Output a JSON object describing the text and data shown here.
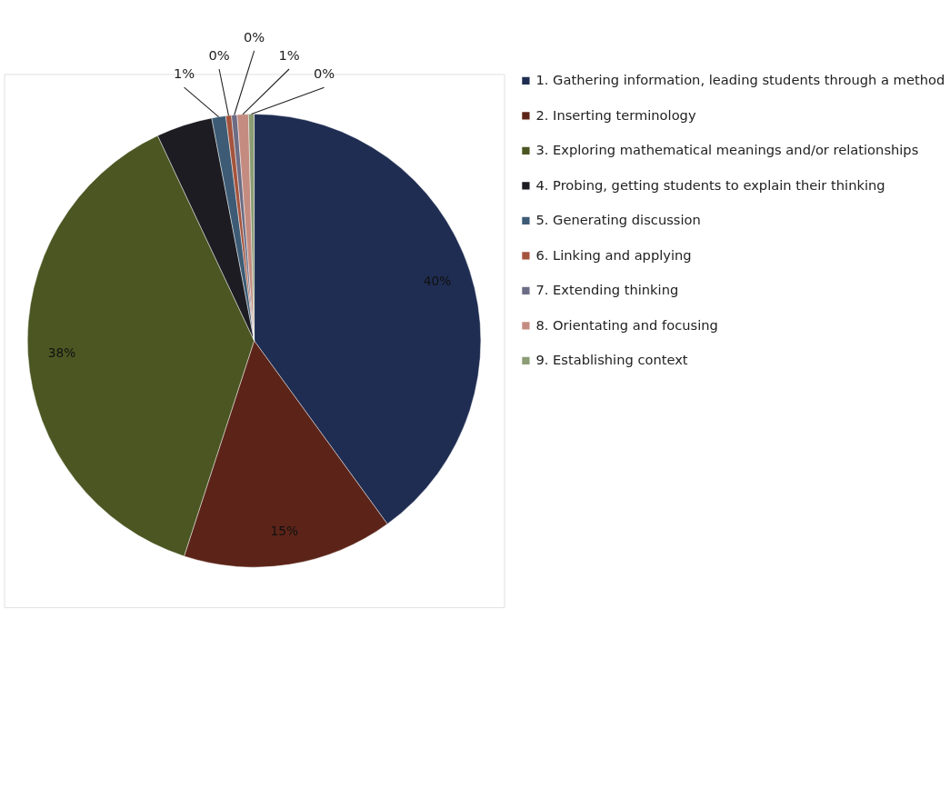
{
  "chart_data": {
    "type": "pie",
    "categories": [
      "1. Gathering information, leading students through a method",
      "2. Inserting terminology",
      "3. Exploring mathematical meanings and/or relationships",
      "4. Probing, getting students to explain their thinking",
      "5. Generating discussion",
      "6.  Linking and applying",
      "7.  Extending thinking",
      "8. Orientating and focusing",
      "9. Establishing context"
    ],
    "values": [
      40,
      15,
      38,
      4,
      1,
      0.4,
      0.4,
      0.8,
      0.4
    ],
    "value_labels": [
      "40%",
      "15%",
      "38%",
      null,
      "1%",
      "0%",
      "0%",
      "1%",
      "0%"
    ],
    "colors": [
      "#1f2d52",
      "#5c2419",
      "#4b5622",
      "#1c1c22",
      "#3d5b74",
      "#a4533c",
      "#6c6c84",
      "#c48c80",
      "#8c9c74"
    ],
    "legend": "top right"
  }
}
